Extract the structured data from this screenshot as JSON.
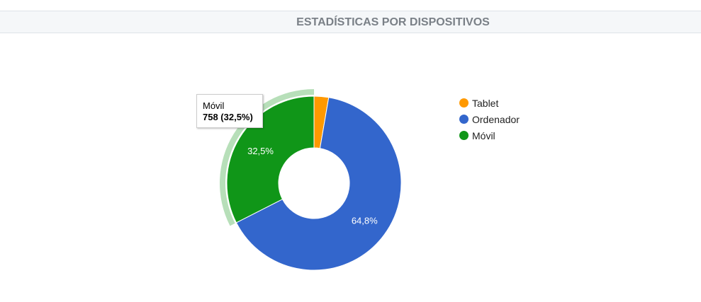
{
  "header": {
    "title": "ESTADÍSTICAS POR DISPOSITIVOS"
  },
  "chart_data": {
    "type": "pie",
    "donut": true,
    "slices": [
      {
        "name": "Tablet",
        "percent": 2.7,
        "color": "#ff9900",
        "label": ""
      },
      {
        "name": "Ordenador",
        "percent": 64.8,
        "color": "#3366cc",
        "label": "64,8%"
      },
      {
        "name": "Móvil",
        "value": 758,
        "percent": 32.5,
        "color": "#109618",
        "label": "32,5%",
        "highlighted": true
      }
    ],
    "legend_position": "right"
  },
  "legend": {
    "items": [
      {
        "label": "Tablet",
        "color": "#ff9900"
      },
      {
        "label": "Ordenador",
        "color": "#3366cc"
      },
      {
        "label": "Móvil",
        "color": "#109618"
      }
    ]
  },
  "tooltip": {
    "title": "Móvil",
    "value": "758 (32,5%)"
  }
}
